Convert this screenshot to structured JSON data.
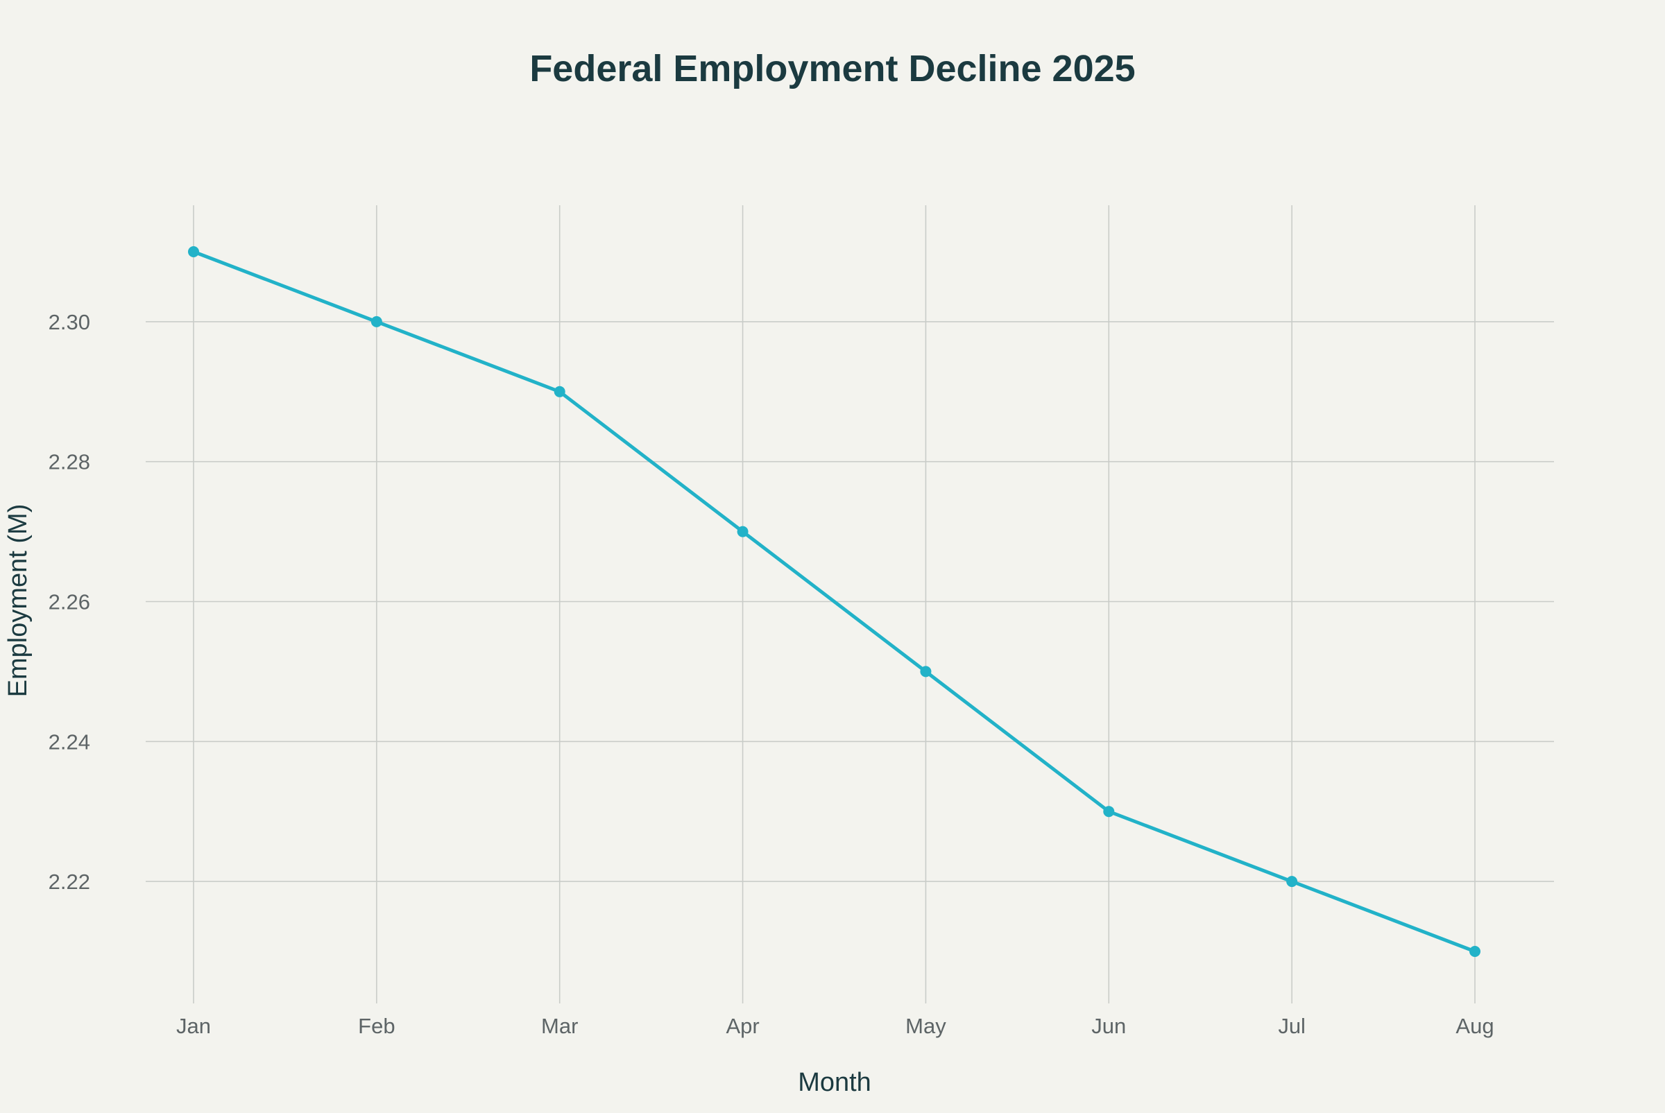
{
  "chart_data": {
    "type": "line",
    "title": "Federal Employment Decline 2025",
    "xlabel": "Month",
    "ylabel": "Employment (M)",
    "categories": [
      "Jan",
      "Feb",
      "Mar",
      "Apr",
      "May",
      "Jun",
      "Jul",
      "Aug"
    ],
    "series": [
      {
        "values": [
          2.31,
          2.3,
          2.29,
          2.27,
          2.25,
          2.23,
          2.22,
          2.21
        ],
        "color": "#22b2c8"
      }
    ],
    "y_ticks": [
      "2.22",
      "2.24",
      "2.26",
      "2.28",
      "2.30"
    ],
    "ylim": [
      2.2,
      2.32
    ],
    "grid": true,
    "markers": true,
    "legend": false
  },
  "colors": {
    "background": "#f3f3ee",
    "title": "#1b3a40",
    "tick_text": "#5d6466",
    "grid": "#c9ccc8"
  }
}
